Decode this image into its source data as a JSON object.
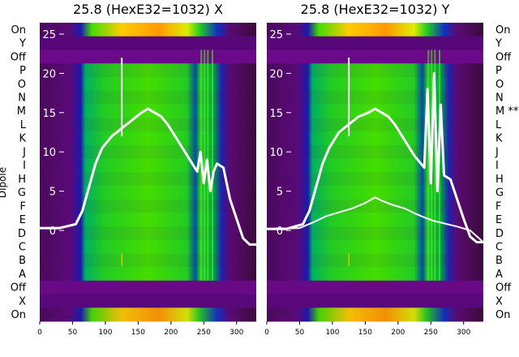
{
  "chart_data": [
    {
      "type": "heatmap",
      "title": "25.8 (HexE32=1032) X",
      "ylabel": "Dipole",
      "x_ticks": [
        0,
        50,
        100,
        150,
        200,
        250,
        300
      ],
      "xlim": [
        0,
        330
      ],
      "curve_ticks": [
        0,
        5,
        10,
        15,
        20,
        25
      ],
      "row_labels": [
        "On",
        "Y",
        "Off",
        "P",
        "O",
        "N",
        "M",
        "L",
        "K",
        "J",
        "I",
        "H",
        "G",
        "F",
        "E",
        "D",
        "C",
        "B",
        "A",
        "Off",
        "X",
        "On"
      ],
      "series": [
        {
          "name": "",
          "x": [
            0,
            30,
            55,
            65,
            75,
            85,
            95,
            110,
            125,
            140,
            155,
            165,
            175,
            185,
            195,
            210,
            225,
            240,
            245,
            250,
            255,
            260,
            265,
            270,
            280,
            290,
            300,
            310,
            320,
            330
          ],
          "y": [
            0.3,
            0.3,
            0.8,
            2.5,
            5.5,
            8.5,
            10.5,
            12.0,
            13.0,
            14.0,
            15.0,
            15.5,
            15.0,
            14.5,
            13.5,
            11.5,
            9.5,
            7.5,
            10.0,
            6.0,
            9.0,
            5.0,
            7.5,
            8.5,
            8.0,
            4.0,
            1.5,
            -1.0,
            -1.8,
            -1.8
          ]
        }
      ]
    },
    {
      "type": "heatmap",
      "title": "25.8 (HexE32=1032) Y",
      "ylabel": "",
      "x_ticks": [
        0,
        50,
        100,
        150,
        200,
        250,
        300
      ],
      "xlim": [
        0,
        330
      ],
      "curve_ticks": [
        0,
        5,
        10,
        15,
        20,
        25
      ],
      "row_labels": [
        "On",
        "Y",
        "Off",
        "P",
        "O",
        "N",
        "M **",
        "L",
        "K",
        "J",
        "I",
        "H",
        "G",
        "F",
        "E",
        "D",
        "C",
        "B",
        "A",
        "Off",
        "X",
        "On"
      ],
      "series": [
        {
          "name": "",
          "x": [
            0,
            30,
            55,
            65,
            75,
            85,
            95,
            110,
            125,
            140,
            155,
            165,
            175,
            185,
            195,
            210,
            225,
            240,
            245,
            250,
            255,
            260,
            265,
            270,
            280,
            290,
            300,
            310,
            320,
            330
          ],
          "y": [
            0.2,
            0.2,
            0.8,
            2.5,
            5.5,
            8.5,
            10.5,
            12.5,
            13.5,
            14.5,
            15.0,
            15.5,
            15.0,
            14.5,
            13.5,
            11.5,
            9.5,
            8.0,
            18.0,
            6.0,
            20.0,
            5.0,
            16.0,
            7.0,
            6.5,
            4.0,
            1.5,
            -0.8,
            -1.5,
            -1.5
          ]
        },
        {
          "name": "",
          "x": [
            0,
            50,
            70,
            90,
            110,
            130,
            150,
            165,
            175,
            190,
            210,
            230,
            245,
            255,
            265,
            275,
            290,
            310,
            330
          ],
          "y": [
            0.2,
            0.3,
            1.0,
            1.8,
            2.3,
            2.8,
            3.5,
            4.2,
            3.8,
            3.3,
            2.8,
            2.0,
            1.5,
            1.2,
            1.0,
            0.8,
            0.5,
            0.0,
            -1.5
          ]
        }
      ]
    }
  ]
}
